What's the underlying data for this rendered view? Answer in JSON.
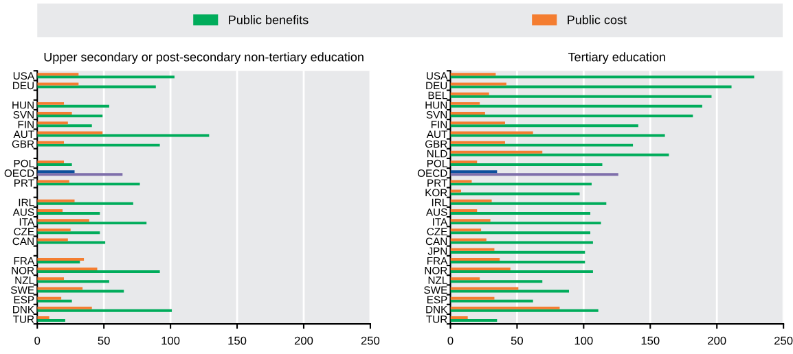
{
  "chart_data": [
    {
      "type": "bar",
      "orientation": "horizontal",
      "title": "Upper secondary or post-secondary non-tertiary education",
      "categories": [
        "USA",
        "DEU",
        null,
        "HUN",
        "SVN",
        "FIN",
        "AUT",
        "GBR",
        null,
        "POL",
        "OECD",
        "PRT",
        null,
        "IRL",
        "AUS",
        "ITA",
        "CZE",
        "CAN",
        null,
        "FRA",
        "NOR",
        "NZL",
        "SWE",
        "ESP",
        "DNK",
        "TUR"
      ],
      "series": [
        {
          "name": "Public benefits",
          "color": "#00ac5b",
          "colors": [
            "#00ac5b",
            "#00ac5b",
            "#00ac5b",
            "#00ac5b",
            "#00ac5b",
            "#00ac5b",
            "#00ac5b",
            "#00ac5b",
            "#00ac5b",
            "#00ac5b",
            "#7f6fab",
            "#00ac5b",
            "#00ac5b",
            "#00ac5b",
            "#00ac5b",
            "#00ac5b",
            "#00ac5b",
            "#00ac5b",
            "#00ac5b",
            "#00ac5b",
            "#00ac5b",
            "#00ac5b",
            "#00ac5b",
            "#00ac5b",
            "#00ac5b",
            "#00ac5b"
          ],
          "values": [
            103,
            89,
            null,
            54,
            49,
            41,
            129,
            92,
            null,
            26,
            64,
            77,
            null,
            72,
            47,
            82,
            47,
            51,
            null,
            32,
            92,
            54,
            65,
            26,
            101,
            21
          ]
        },
        {
          "name": "Public cost",
          "color": "#f47d30",
          "colors": [
            "#f47d30",
            "#f47d30",
            "#f47d30",
            "#f47d30",
            "#f47d30",
            "#f47d30",
            "#f47d30",
            "#f47d30",
            "#f47d30",
            "#f47d30",
            "#0b4f9c",
            "#f47d30",
            "#f47d30",
            "#f47d30",
            "#f47d30",
            "#f47d30",
            "#f47d30",
            "#f47d30",
            "#f47d30",
            "#f47d30",
            "#f47d30",
            "#f47d30",
            "#f47d30",
            "#f47d30",
            "#f47d30",
            "#f47d30"
          ],
          "values": [
            31,
            31,
            null,
            20,
            26,
            23,
            49,
            20,
            null,
            20,
            28,
            24,
            null,
            28,
            19,
            39,
            25,
            23,
            null,
            35,
            45,
            20,
            34,
            18,
            41,
            9
          ]
        }
      ],
      "xlim": [
        0,
        250
      ],
      "xticks": [
        0,
        50,
        100,
        150,
        200,
        250
      ],
      "grid": "x",
      "legend": "top"
    },
    {
      "type": "bar",
      "orientation": "horizontal",
      "title": "Tertiary education",
      "categories": [
        "USA",
        "DEU",
        "BEL",
        "HUN",
        "SVN",
        "FIN",
        "AUT",
        "GBR",
        "NLD",
        "POL",
        "OECD",
        "PRT",
        "KOR",
        "IRL",
        "AUS",
        "ITA",
        "CZE",
        "CAN",
        "JPN",
        "FRA",
        "NOR",
        "NZL",
        "SWE",
        "ESP",
        "DNK",
        "TUR"
      ],
      "series": [
        {
          "name": "Public benefits",
          "color": "#00ac5b",
          "colors": [
            "#00ac5b",
            "#00ac5b",
            "#00ac5b",
            "#00ac5b",
            "#00ac5b",
            "#00ac5b",
            "#00ac5b",
            "#00ac5b",
            "#00ac5b",
            "#00ac5b",
            "#7f6fab",
            "#00ac5b",
            "#00ac5b",
            "#00ac5b",
            "#00ac5b",
            "#00ac5b",
            "#00ac5b",
            "#00ac5b",
            "#00ac5b",
            "#00ac5b",
            "#00ac5b",
            "#00ac5b",
            "#00ac5b",
            "#00ac5b",
            "#00ac5b",
            "#00ac5b"
          ],
          "values": [
            228,
            211,
            196,
            189,
            182,
            141,
            161,
            137,
            164,
            114,
            126,
            106,
            97,
            117,
            105,
            113,
            105,
            107,
            101,
            101,
            107,
            69,
            89,
            62,
            111,
            35
          ]
        },
        {
          "name": "Public cost",
          "color": "#f47d30",
          "colors": [
            "#f47d30",
            "#f47d30",
            "#f47d30",
            "#f47d30",
            "#f47d30",
            "#f47d30",
            "#f47d30",
            "#f47d30",
            "#f47d30",
            "#f47d30",
            "#0b4f9c",
            "#f47d30",
            "#f47d30",
            "#f47d30",
            "#f47d30",
            "#f47d30",
            "#f47d30",
            "#f47d30",
            "#f47d30",
            "#f47d30",
            "#f47d30",
            "#f47d30",
            "#f47d30",
            "#f47d30",
            "#f47d30",
            "#f47d30"
          ],
          "values": [
            34,
            42,
            29,
            22,
            26,
            41,
            62,
            41,
            69,
            20,
            35,
            16,
            8,
            31,
            20,
            30,
            23,
            27,
            33,
            37,
            45,
            22,
            51,
            33,
            82,
            13
          ]
        }
      ],
      "xlim": [
        0,
        250
      ],
      "xticks": [
        0,
        50,
        100,
        150,
        200,
        250
      ],
      "grid": "x",
      "legend": "top"
    }
  ]
}
